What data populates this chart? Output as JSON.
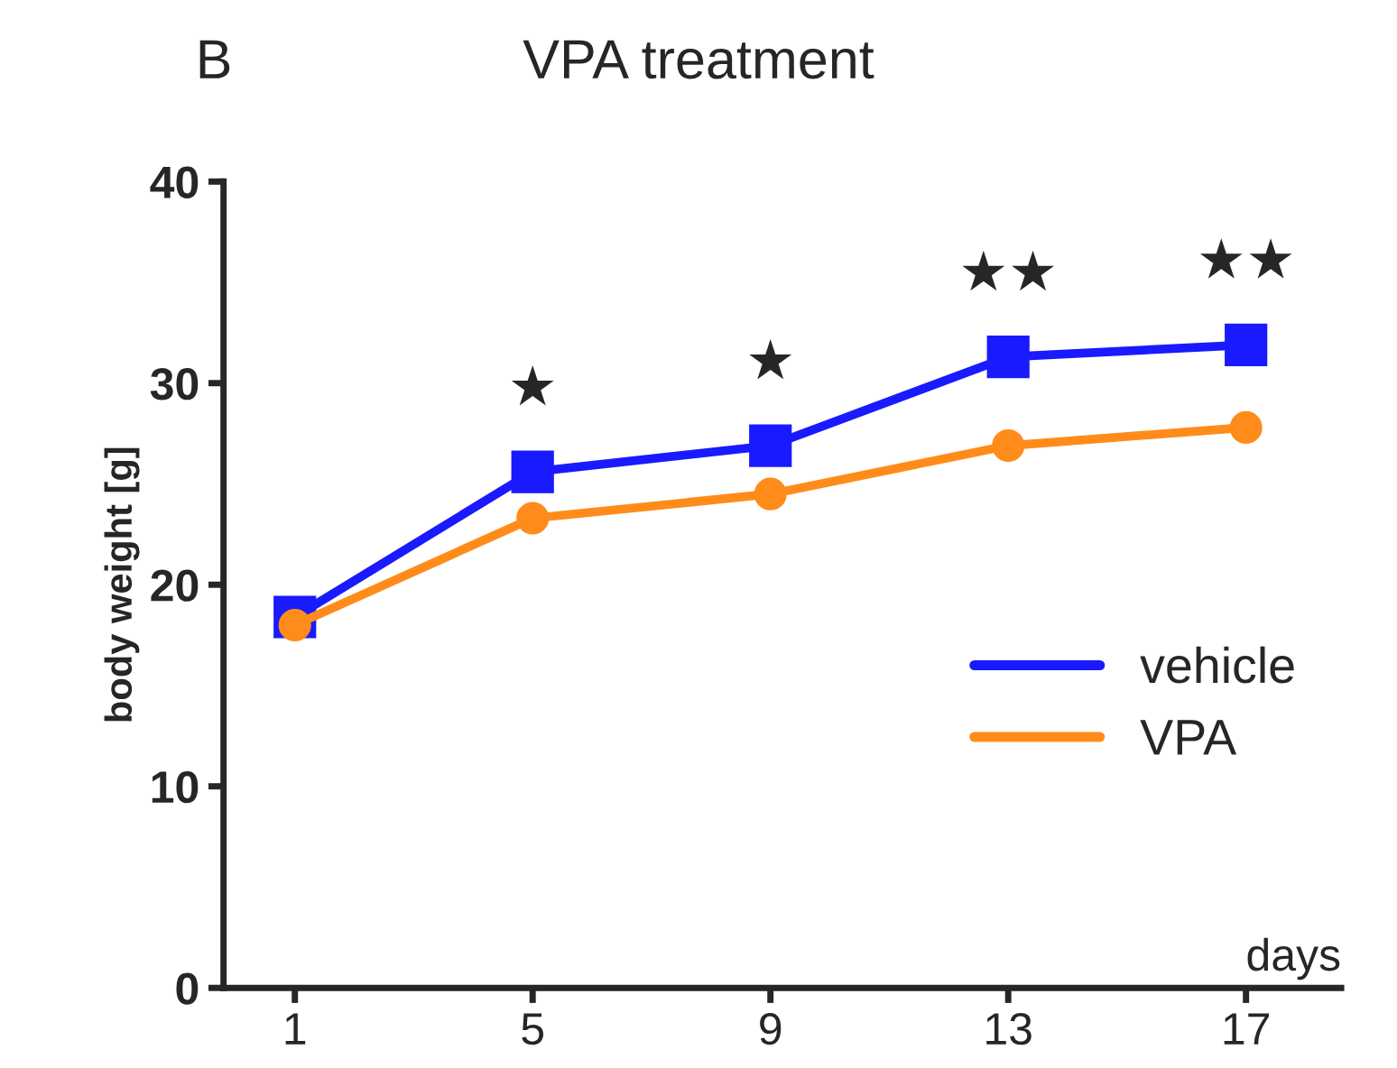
{
  "chart_data": {
    "type": "line",
    "title": "VPA treatment",
    "xlabel": "days",
    "ylabel": "body weight [g]",
    "categories": [
      "1",
      "5",
      "9",
      "13",
      "17"
    ],
    "series": [
      {
        "name": "vehicle",
        "color": "#1a1aff",
        "marker": "square",
        "values": [
          18.4,
          25.6,
          26.9,
          31.3,
          31.9
        ]
      },
      {
        "name": "VPA",
        "color": "#ff8c1a",
        "marker": "circle",
        "values": [
          18.0,
          23.3,
          24.5,
          26.9,
          27.8
        ]
      }
    ],
    "ylim": [
      0,
      40
    ],
    "yticks": [
      0,
      10,
      20,
      30,
      40
    ],
    "grid": false,
    "legend": "center right",
    "line_style": "solid",
    "annotations": [
      "B",
      "★",
      "★",
      "★★",
      "★★"
    ]
  }
}
